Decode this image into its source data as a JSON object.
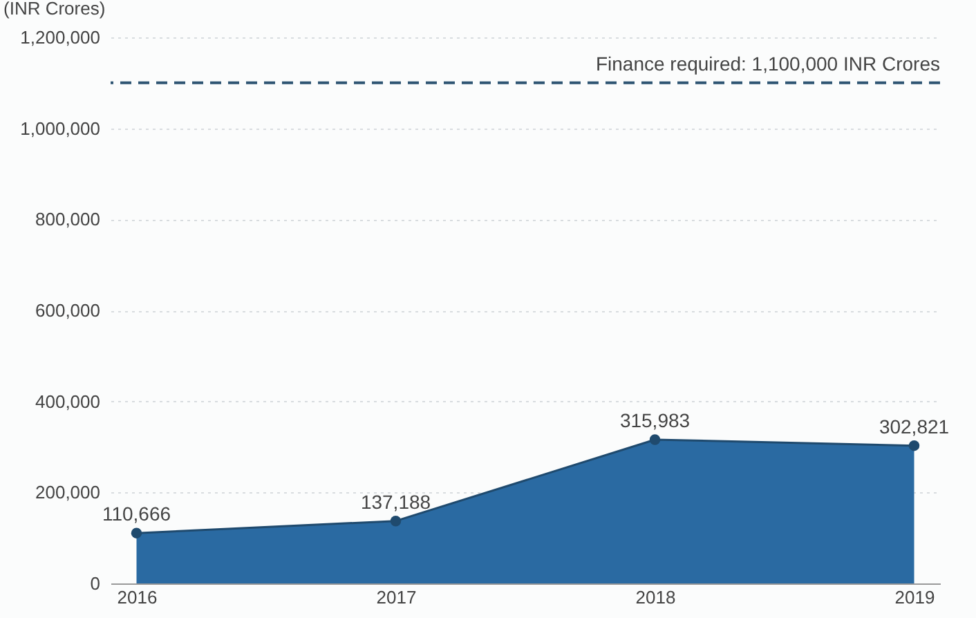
{
  "chart_data": {
    "type": "area",
    "ylabel": "(INR Crores)",
    "categories": [
      "2016",
      "2017",
      "2018",
      "2019"
    ],
    "values": [
      110666,
      137188,
      315983,
      302821
    ],
    "color": "#2a6aa2",
    "value_labels": [
      "110,666",
      "137,188",
      "315,983",
      "302,821"
    ],
    "ylim": [
      0,
      1200000
    ],
    "yticks": [
      0,
      {
        "value": 200000,
        "label": "200,000"
      },
      {
        "value": 400000,
        "label": "400,000"
      },
      {
        "value": 600000,
        "label": "600,000"
      },
      {
        "value": 800000,
        "label": "800,000"
      },
      {
        "value": 1000000,
        "label": "1,000,000"
      },
      {
        "value": 1200000,
        "label": "1,200,000"
      }
    ],
    "grid": "y",
    "marker": "circle",
    "ref_lines": [
      {
        "axis": "y",
        "value": 1100000,
        "label": "Finance required: 1,100,000 INR Crores",
        "color": "#2f5573",
        "line_style": "dashed"
      }
    ]
  }
}
